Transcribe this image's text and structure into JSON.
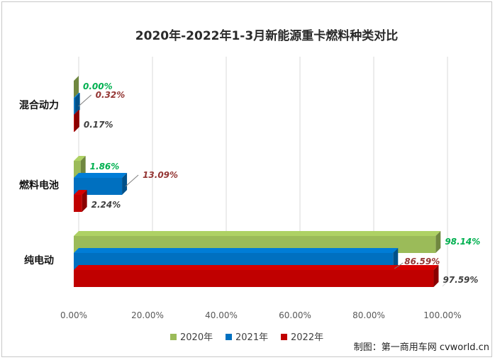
{
  "chart_data": {
    "type": "bar",
    "orientation": "horizontal",
    "title": "2020年-2022年1-3月新能源重卡燃料种类对比",
    "categories": [
      "混合动力",
      "燃料电池",
      "纯电动"
    ],
    "series": [
      {
        "name": "2020年",
        "color": "#9bbb59",
        "label_color": "#00b050",
        "values": [
          0.0,
          1.86,
          98.14
        ]
      },
      {
        "name": "2021年",
        "color": "#0070c0",
        "label_color": "#943634",
        "values": [
          0.32,
          13.09,
          86.59
        ]
      },
      {
        "name": "2022年",
        "color": "#c00000",
        "label_color": "#404040",
        "values": [
          0.17,
          2.24,
          97.59
        ]
      }
    ],
    "data_labels": [
      [
        "0.00%",
        "0.32%",
        "0.17%"
      ],
      [
        "1.86%",
        "13.09%",
        "2.24%"
      ],
      [
        "98.14%",
        "86.59%",
        "97.59%"
      ]
    ],
    "x_ticks": [
      "0.00%",
      "20.00%",
      "40.00%",
      "60.00%",
      "80.00%",
      "100.00%"
    ],
    "xlim": [
      0,
      100
    ],
    "grid": true,
    "legend_position": "bottom"
  },
  "credit": "制图：第一商用车网 cvworld.cn"
}
